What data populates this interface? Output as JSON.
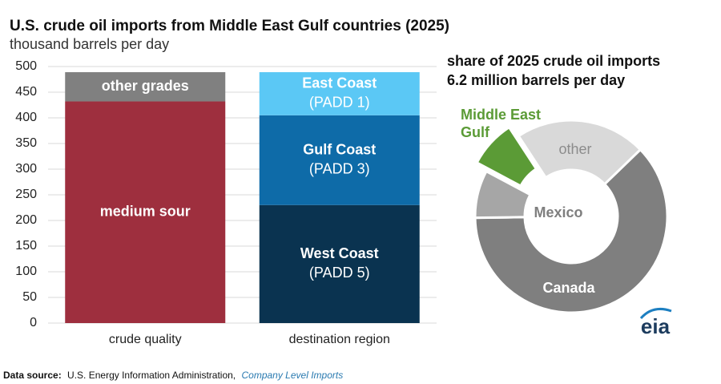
{
  "chart_data": [
    {
      "type": "bar",
      "stacked": true,
      "title": "U.S. crude oil imports from Middle East Gulf countries (2025)",
      "subtitle": "thousand barrels per day",
      "categories": [
        "crude quality",
        "destination region"
      ],
      "series": [
        {
          "name": "medium sour",
          "color": "#9e2f3e",
          "values": [
            432,
            null
          ]
        },
        {
          "name": "other grades",
          "color": "#808080",
          "values": [
            57,
            null
          ]
        },
        {
          "name": "West Coast",
          "sublabel": "(PADD 5)",
          "color": "#0a3350",
          "values": [
            null,
            230
          ]
        },
        {
          "name": "Gulf Coast",
          "sublabel": "(PADD 3)",
          "color": "#0e6ba8",
          "values": [
            null,
            175
          ]
        },
        {
          "name": "East Coast",
          "sublabel": "(PADD 1)",
          "color": "#5bc8f5",
          "values": [
            null,
            84
          ]
        }
      ],
      "ylim": [
        0,
        500
      ],
      "yticks": [
        0,
        50,
        100,
        150,
        200,
        250,
        300,
        350,
        400,
        450,
        500
      ],
      "grid": true
    },
    {
      "type": "pie",
      "donut": true,
      "title": "share of 2025 crude oil imports",
      "subtitle": "6.2 million barrels per day",
      "categories": [
        "Canada",
        "Mexico",
        "Middle East Gulf",
        "other"
      ],
      "values": [
        62,
        8,
        8,
        22
      ],
      "colors": [
        "#7f7f7f",
        "#a6a6a6",
        "#5b9b36",
        "#d9d9d9"
      ],
      "label_colors": [
        "#ffffff",
        "#7f7f7f",
        "#5b9b36",
        "#8c8c8c"
      ],
      "exploded": "Middle East Gulf"
    }
  ],
  "footer": {
    "source_label": "Data source:",
    "source": "U.S. Energy Information Administration,",
    "link": "Company Level Imports"
  },
  "logo": "eia"
}
